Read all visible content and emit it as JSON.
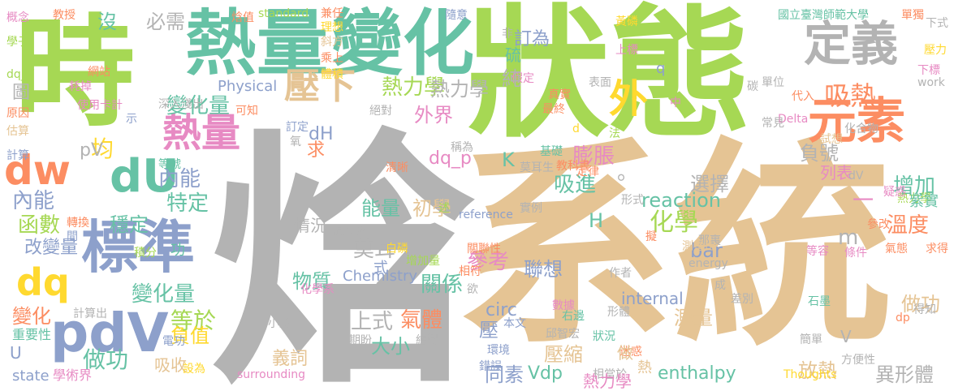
{
  "palette": {
    "gray": "#b3b3b3",
    "tan": "#e5c494",
    "green": "#a6d854",
    "teal": "#66c2a5",
    "orange": "#fc8d62",
    "blue": "#8da0cb",
    "pink": "#e78ac3",
    "yellow": "#ffd92f"
  },
  "words": [
    {
      "text": "焓",
      "color": "gray"
    },
    {
      "text": "系統",
      "color": "tan"
    },
    {
      "text": "狀態",
      "color": "green"
    },
    {
      "text": "時",
      "color": "green"
    },
    {
      "text": "熱量",
      "color": "teal"
    },
    {
      "text": "變化",
      "color": "teal"
    },
    {
      "text": "定義",
      "color": "gray"
    },
    {
      "text": "元素",
      "color": "orange"
    },
    {
      "text": "標準",
      "color": "blue"
    },
    {
      "text": "pdV",
      "color": "blue"
    },
    {
      "text": "dU",
      "color": "teal"
    },
    {
      "text": "dw",
      "color": "orange"
    },
    {
      "text": "dq",
      "color": "yellow"
    },
    {
      "text": "熱量",
      "color": "pink"
    },
    {
      "text": "壓下",
      "color": "tan"
    },
    {
      "text": "外",
      "color": "yellow"
    },
    {
      "text": "吸熱",
      "color": "orange"
    },
    {
      "text": "熱力學",
      "color": "green"
    },
    {
      "text": "變化量",
      "color": "teal"
    },
    {
      "text": "內能",
      "color": "blue"
    },
    {
      "text": "變化量",
      "color": "teal"
    },
    {
      "text": "函數",
      "color": "green"
    },
    {
      "text": "等於",
      "color": "green"
    },
    {
      "text": "做功",
      "color": "teal"
    },
    {
      "text": "化學",
      "color": "green"
    },
    {
      "text": "選擇",
      "color": "gray"
    },
    {
      "text": "莫耳",
      "color": "gray"
    },
    {
      "text": "上式",
      "color": "gray"
    },
    {
      "text": "氣體",
      "color": "orange"
    },
    {
      "text": "大小",
      "color": "teal"
    },
    {
      "text": "關係",
      "color": "teal"
    },
    {
      "text": "參考",
      "color": "pink"
    },
    {
      "text": "聯想",
      "color": "blue"
    },
    {
      "text": "物質",
      "color": "teal"
    },
    {
      "text": "能量",
      "color": "teal"
    },
    {
      "text": "初學",
      "color": "tan"
    },
    {
      "text": "reaction",
      "color": "teal"
    },
    {
      "text": "bar",
      "color": "blue"
    },
    {
      "text": "H",
      "color": "teal"
    },
    {
      "text": "增加",
      "color": "teal"
    },
    {
      "text": "溫度",
      "color": "orange"
    },
    {
      "text": "測量",
      "color": "tan"
    },
    {
      "text": "負號",
      "color": "gray"
    },
    {
      "text": "膨脹",
      "color": "pink"
    },
    {
      "text": "內能",
      "color": "blue"
    },
    {
      "text": "外界",
      "color": "pink"
    },
    {
      "text": "熱力學",
      "color": "gray"
    },
    {
      "text": "壓縮",
      "color": "tan"
    },
    {
      "text": "同素",
      "color": "blue"
    },
    {
      "text": "Vdp",
      "color": "teal"
    },
    {
      "text": "放熱",
      "color": "tan"
    },
    {
      "text": "異形體",
      "color": "gray"
    },
    {
      "text": "enthalpy",
      "color": "teal"
    },
    {
      "text": "做功",
      "color": "tan"
    },
    {
      "text": "義詞",
      "color": "tan"
    },
    {
      "text": "state",
      "color": "blue"
    },
    {
      "text": "吸收",
      "color": "tan"
    },
    {
      "text": "負值",
      "color": "yellow"
    },
    {
      "text": "特定",
      "color": "teal"
    },
    {
      "text": "穩定",
      "color": "teal"
    },
    {
      "text": "均",
      "color": "yellow"
    },
    {
      "text": "改變量",
      "color": "blue"
    },
    {
      "text": "變化",
      "color": "orange"
    },
    {
      "text": "重要性",
      "color": "teal"
    },
    {
      "text": "Physical",
      "color": "blue"
    },
    {
      "text": "Chemistry",
      "color": "blue"
    },
    {
      "text": "dH",
      "color": "blue"
    },
    {
      "text": "pV",
      "color": "gray"
    },
    {
      "text": "dq_p",
      "color": "pink"
    },
    {
      "text": "吸進",
      "color": "teal"
    },
    {
      "text": "求",
      "color": "orange"
    },
    {
      "text": "情況",
      "color": "gray"
    },
    {
      "text": "circ",
      "color": "blue"
    },
    {
      "text": "國立臺灣師範大學",
      "color": "teal"
    },
    {
      "text": "化學系",
      "color": "pink"
    },
    {
      "text": "學術界",
      "color": "pink"
    },
    {
      "text": "必需",
      "color": "gray"
    },
    {
      "text": "沒",
      "color": "teal"
    },
    {
      "text": "教授",
      "color": "orange"
    },
    {
      "text": "網站",
      "color": "orange"
    },
    {
      "text": "耗掉",
      "color": "pink"
    },
    {
      "text": "使用卡計",
      "color": "pink"
    },
    {
      "text": "深入淺出",
      "color": "gray"
    },
    {
      "text": "standard",
      "color": "green"
    },
    {
      "text": "兼任",
      "color": "orange"
    },
    {
      "text": "理想",
      "color": "yellow"
    },
    {
      "text": "隨意",
      "color": "blue"
    },
    {
      "text": "單獨",
      "color": "orange"
    },
    {
      "text": "下式",
      "color": "gray"
    },
    {
      "text": "壓力",
      "color": "yellow"
    },
    {
      "text": "work",
      "color": "gray"
    },
    {
      "text": "下標",
      "color": "pink"
    },
    {
      "text": "概念",
      "color": "pink"
    },
    {
      "text": "學子",
      "color": "green"
    },
    {
      "text": "dq_V",
      "color": "green"
    },
    {
      "text": "圖",
      "color": "gray"
    },
    {
      "text": "原因",
      "color": "orange"
    },
    {
      "text": "估算",
      "color": "tan"
    },
    {
      "text": "計算",
      "color": "blue"
    },
    {
      "text": "轉換",
      "color": "orange"
    },
    {
      "text": "間",
      "color": "blue"
    },
    {
      "text": "積分",
      "color": "green"
    },
    {
      "text": "U",
      "color": "blue"
    },
    {
      "text": "計算出",
      "color": "gray"
    },
    {
      "text": "小於",
      "color": "gray"
    },
    {
      "text": "期盼",
      "color": "gray"
    },
    {
      "text": "繪製",
      "color": "gray"
    },
    {
      "text": "設為",
      "color": "yellow"
    },
    {
      "text": "電功",
      "color": "blue"
    },
    {
      "text": "surrounding",
      "color": "pink"
    },
    {
      "text": "清晰",
      "color": "orange"
    },
    {
      "text": "白磷",
      "color": "yellow"
    },
    {
      "text": "張力功",
      "color": "gray"
    },
    {
      "text": "增加量",
      "color": "green"
    },
    {
      "text": "reference",
      "color": "blue"
    },
    {
      "text": "實例",
      "color": "gray"
    },
    {
      "text": "關聯性",
      "color": "orange"
    },
    {
      "text": "相符",
      "color": "orange"
    },
    {
      "text": "欲",
      "color": "gray"
    },
    {
      "text": "數據",
      "color": "pink"
    },
    {
      "text": "石墨",
      "color": "teal"
    },
    {
      "text": "右邊",
      "color": "teal"
    },
    {
      "text": "邱智宏",
      "color": "gray"
    },
    {
      "text": "環境",
      "color": "blue"
    },
    {
      "text": "錯誤",
      "color": "blue"
    },
    {
      "text": "相當於",
      "color": "gray"
    },
    {
      "text": "Thoughts",
      "color": "yellow"
    },
    {
      "text": "方便性",
      "color": "gray"
    },
    {
      "text": "簡單",
      "color": "gray"
    },
    {
      "text": "dp",
      "color": "orange"
    },
    {
      "text": "得知",
      "color": "gray"
    },
    {
      "text": "求得",
      "color": "orange"
    },
    {
      "text": "氣態",
      "color": "orange"
    },
    {
      "text": "等容",
      "color": "pink"
    },
    {
      "text": "條件",
      "color": "pink"
    },
    {
      "text": "energy",
      "color": "gray"
    },
    {
      "text": "作者",
      "color": "gray"
    },
    {
      "text": "列表",
      "color": "pink"
    },
    {
      "text": "dV",
      "color": "gray"
    },
    {
      "text": "熱力學",
      "color": "green"
    },
    {
      "text": "疑惑",
      "color": "pink"
    },
    {
      "text": "紫實",
      "color": "teal"
    },
    {
      "text": "參改",
      "color": "orange"
    },
    {
      "text": "化合物",
      "color": "gray"
    },
    {
      "text": "試想",
      "color": "tan"
    },
    {
      "text": "Delta",
      "color": "pink"
    },
    {
      "text": "常見",
      "color": "gray"
    },
    {
      "text": "代入",
      "color": "orange"
    },
    {
      "text": "單位",
      "color": "gray"
    },
    {
      "text": "碳",
      "color": "gray"
    },
    {
      "text": "表面",
      "color": "gray"
    },
    {
      "text": "假定",
      "color": "pink"
    },
    {
      "text": "真實",
      "color": "orange"
    },
    {
      "text": "最終",
      "color": "orange"
    },
    {
      "text": "基礎",
      "color": "teal"
    },
    {
      "text": "莫耳生",
      "color": "gray"
    },
    {
      "text": "教科書",
      "color": "orange"
    },
    {
      "text": "定律",
      "color": "orange"
    },
    {
      "text": "法",
      "color": "green"
    },
    {
      "text": "黃磷",
      "color": "yellow"
    },
    {
      "text": "上標",
      "color": "pink"
    },
    {
      "text": "訂為",
      "color": "blue"
    },
    {
      "text": "硫",
      "color": "teal"
    },
    {
      "text": "q",
      "color": "blue"
    },
    {
      "text": "K",
      "color": "teal"
    },
    {
      "text": "非",
      "color": "gray"
    },
    {
      "text": "純",
      "color": "gray"
    },
    {
      "text": "焓值",
      "color": "orange"
    },
    {
      "text": "斜方",
      "color": "tan"
    },
    {
      "text": "乘上",
      "color": "orange"
    },
    {
      "text": "體積",
      "color": "yellow"
    },
    {
      "text": "絕對",
      "color": "gray"
    },
    {
      "text": "可知",
      "color": "orange"
    },
    {
      "text": "訂定",
      "color": "blue"
    },
    {
      "text": "氧",
      "color": "gray"
    },
    {
      "text": "稱為",
      "color": "gray"
    },
    {
      "text": "示",
      "color": "blue"
    },
    {
      "text": "等號",
      "color": "teal"
    },
    {
      "text": "述",
      "color": "green"
    },
    {
      "text": "形式",
      "color": "gray"
    },
    {
      "text": "擬",
      "color": "orange"
    },
    {
      "text": "那裏",
      "color": "gray"
    },
    {
      "text": "測量出",
      "color": "tan"
    },
    {
      "text": "成",
      "color": "gray"
    },
    {
      "text": "差別",
      "color": "gray"
    },
    {
      "text": "internal",
      "color": "blue"
    },
    {
      "text": "形體",
      "color": "gray"
    },
    {
      "text": "狀況",
      "color": "teal"
    },
    {
      "text": "迷惑",
      "color": "orange"
    },
    {
      "text": "本文",
      "color": "blue"
    },
    {
      "text": "中",
      "color": "pink"
    },
    {
      "text": "d",
      "color": "yellow"
    },
    {
      "text": "m",
      "color": "gray"
    },
    {
      "text": "V",
      "color": "gray"
    },
    {
      "text": "一",
      "color": "pink"
    },
    {
      "text": "。",
      "color": "gray"
    },
    {
      "text": "功",
      "color": "teal"
    },
    {
      "text": "式",
      "color": "blue"
    },
    {
      "text": "做",
      "color": "tan"
    },
    {
      "text": "熱",
      "color": "tan"
    },
    {
      "text": "壓",
      "color": "blue"
    },
    {
      "text": "磷",
      "color": "tan"
    },
    {
      "text": "熱力學",
      "color": "pink"
    }
  ]
}
